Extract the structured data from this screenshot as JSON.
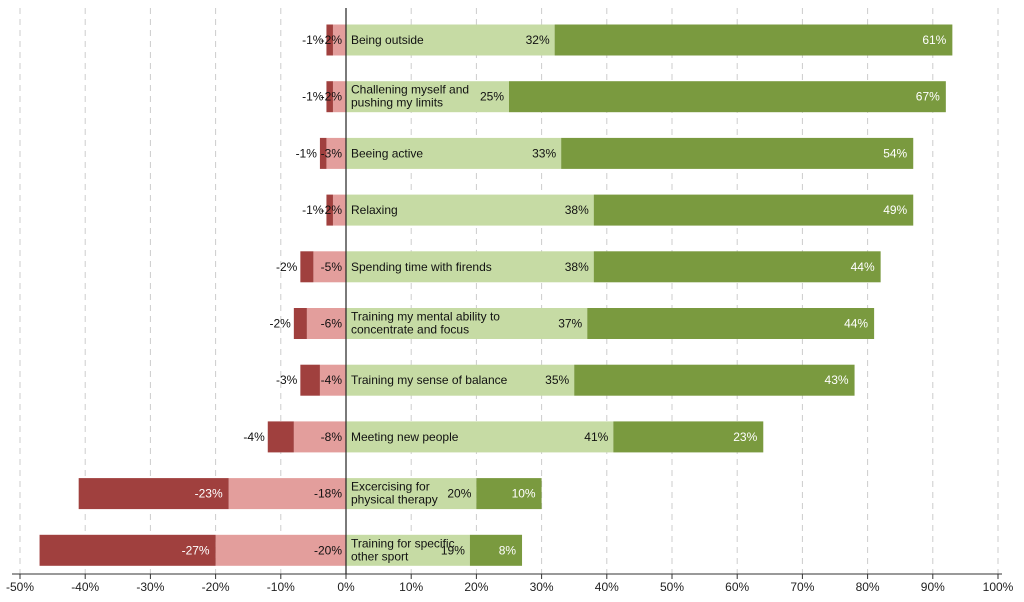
{
  "chart_data": {
    "type": "bar",
    "orientation": "horizontal",
    "stacked": "diverging",
    "xlim": [
      -50,
      100
    ],
    "x_ticks": [
      -50,
      -40,
      -30,
      -20,
      -10,
      0,
      10,
      20,
      30,
      40,
      50,
      60,
      70,
      80,
      90,
      100
    ],
    "x_tick_labels": [
      "-50%",
      "-40%",
      "-30%",
      "-20%",
      "-10%",
      "0%",
      "10%",
      "20%",
      "30%",
      "40%",
      "50%",
      "60%",
      "70%",
      "80%",
      "90%",
      "100%"
    ],
    "grid": "vertical dashed",
    "categories": [
      [
        "Being outside"
      ],
      [
        "Challening myself and",
        "pushing my limits"
      ],
      [
        "Beeing active"
      ],
      [
        "Relaxing"
      ],
      [
        "Spending time with firends"
      ],
      [
        "Training my mental ability to",
        "concentrate and focus"
      ],
      [
        "Training my sense of balance"
      ],
      [
        "Meeting new people"
      ],
      [
        "Excercising for",
        "physical therapy"
      ],
      [
        "Training for specific",
        "other sport"
      ]
    ],
    "series": [
      {
        "values": [
          -1,
          -1,
          -1,
          -1,
          -2,
          -2,
          -3,
          -4,
          -23,
          -27
        ],
        "labels": [
          "-1%",
          "-1%",
          "-1%",
          "-1%",
          "-2%",
          "-2%",
          "-3%",
          "-4%",
          "-23%",
          "-27%"
        ],
        "color": "#a0403e"
      },
      {
        "values": [
          -2,
          -2,
          -3,
          -2,
          -5,
          -6,
          -4,
          -8,
          -18,
          -20
        ],
        "labels": [
          "-2%",
          "-2%",
          "-3%",
          "-2%",
          "-5%",
          "-6%",
          "-4%",
          "-8%",
          "-18%",
          "-20%"
        ],
        "color": "#e39e9c"
      },
      {
        "values": [
          32,
          25,
          33,
          38,
          38,
          37,
          35,
          41,
          20,
          19
        ],
        "labels": [
          "32%",
          "25%",
          "33%",
          "38%",
          "38%",
          "37%",
          "35%",
          "41%",
          "20%",
          "19%"
        ],
        "color": "#c6dba4"
      },
      {
        "values": [
          61,
          67,
          54,
          49,
          44,
          44,
          43,
          23,
          10,
          8
        ],
        "labels": [
          "61%",
          "67%",
          "54%",
          "49%",
          "44%",
          "44%",
          "43%",
          "23%",
          "10%",
          "8%"
        ],
        "color": "#7a9a3f"
      }
    ]
  }
}
